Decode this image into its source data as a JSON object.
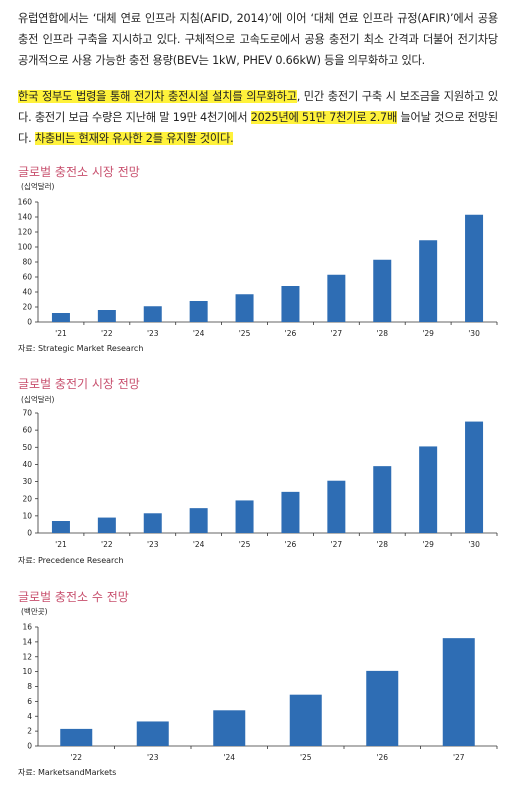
{
  "paragraph1": {
    "text": "유럽연합에서는 ‘대체 연료 인프라 지침(AFID, 2014)’에 이어 ‘대체 연료 인프라 규정(AFIR)’에서 공용 충전 인프라 구축을 지시하고 있다. 구체적으로 고속도로에서 공용 충전기 최소 간격과 더불어 전기차당 공개적으로 사용 가능한 충전 용량(BEV는 1kW, PHEV 0.66kW) 등을 의무화하고 있다."
  },
  "paragraph2": {
    "hl1": "한국 정부도 법령을 통해 전기차 충전시설 설치를 의무화하고",
    "t1": ", 민간 충전기 구축 시 보조금을 지원하고 있다. 충전기 보급 수량은 지난해 말 19만 4천기에서 ",
    "hl2": "2025년에 51만 7천기로 2.7배",
    "t2": " 늘어날 것으로 전망된다. ",
    "hl3": "차충비는 현재와 유사한 2를 유지할 것이다."
  },
  "colors": {
    "bar": "#2e6db4",
    "title": "#c8506e",
    "highlight": "#fff23b"
  },
  "chart_data": [
    {
      "type": "bar",
      "title": "글로벌 충전소 시장 전망",
      "unit": "(십억달러)",
      "categories": [
        "'21",
        "'22",
        "'23",
        "'24",
        "'25",
        "'26",
        "'27",
        "'28",
        "'29",
        "'30"
      ],
      "values": [
        12,
        16,
        21,
        28,
        37,
        48,
        63,
        83,
        109,
        143
      ],
      "ylim": [
        0,
        160
      ],
      "yticks": [
        0,
        20,
        40,
        60,
        80,
        100,
        120,
        140,
        160
      ],
      "source": "자료: Strategic Market Research"
    },
    {
      "type": "bar",
      "title": "글로벌 충전기 시장 전망",
      "unit": "(십억달러)",
      "categories": [
        "'21",
        "'22",
        "'23",
        "'24",
        "'25",
        "'26",
        "'27",
        "'28",
        "'29",
        "'30"
      ],
      "values": [
        7,
        9,
        11.5,
        14.5,
        19,
        24,
        30.5,
        39,
        50.5,
        65
      ],
      "ylim": [
        0,
        70
      ],
      "yticks": [
        0,
        10,
        20,
        30,
        40,
        50,
        60,
        70
      ],
      "source": "자료: Precedence Research"
    },
    {
      "type": "bar",
      "title": "글로벌 충전소 수 전망",
      "unit": "(백만곳)",
      "categories": [
        "'22",
        "'23",
        "'24",
        "'25",
        "'26",
        "'27"
      ],
      "values": [
        2.3,
        3.3,
        4.8,
        6.9,
        10.1,
        14.5
      ],
      "ylim": [
        0,
        16
      ],
      "yticks": [
        0,
        2,
        4,
        6,
        8,
        10,
        12,
        14,
        16
      ],
      "source": "자료: MarketsandMarkets"
    }
  ]
}
